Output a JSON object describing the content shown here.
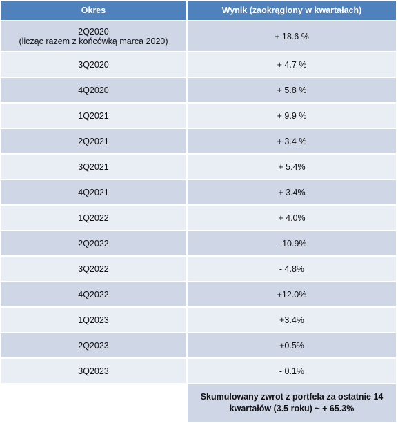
{
  "table": {
    "header": [
      "Okres",
      "Wynik (zaokrąglony w kwartałach)"
    ],
    "rows": [
      {
        "period": "2Q2020",
        "period_note": "(licząc razem z końcówką marca 2020)",
        "result": "+ 18.6 %"
      },
      {
        "period": "3Q2020",
        "result": "+ 4.7 %"
      },
      {
        "period": "4Q2020",
        "result": "+ 5.8 %"
      },
      {
        "period": "1Q2021",
        "result": "+ 9.9 %"
      },
      {
        "period": "2Q2021",
        "result": "+ 3.4 %"
      },
      {
        "period": "3Q2021",
        "result": "+ 5.4%"
      },
      {
        "period": "4Q2021",
        "result": "+ 3.4%"
      },
      {
        "period": "1Q2022",
        "result": "+ 4.0%"
      },
      {
        "period": "2Q2022",
        "result": "- 10.9%"
      },
      {
        "period": "3Q2022",
        "result": "- 4.8%"
      },
      {
        "period": "4Q2022",
        "result": "+12.0%"
      },
      {
        "period": "1Q2023",
        "result": "+3.4%"
      },
      {
        "period": "2Q2023",
        "result": "+0.5%"
      },
      {
        "period": "3Q2023",
        "result": "- 0.1%"
      }
    ],
    "summary": [
      "Skumulowany zwrot  z portfela za ostatnie 14",
      "kwartałów (3.5 roku) ~ + 65.3%"
    ]
  }
}
